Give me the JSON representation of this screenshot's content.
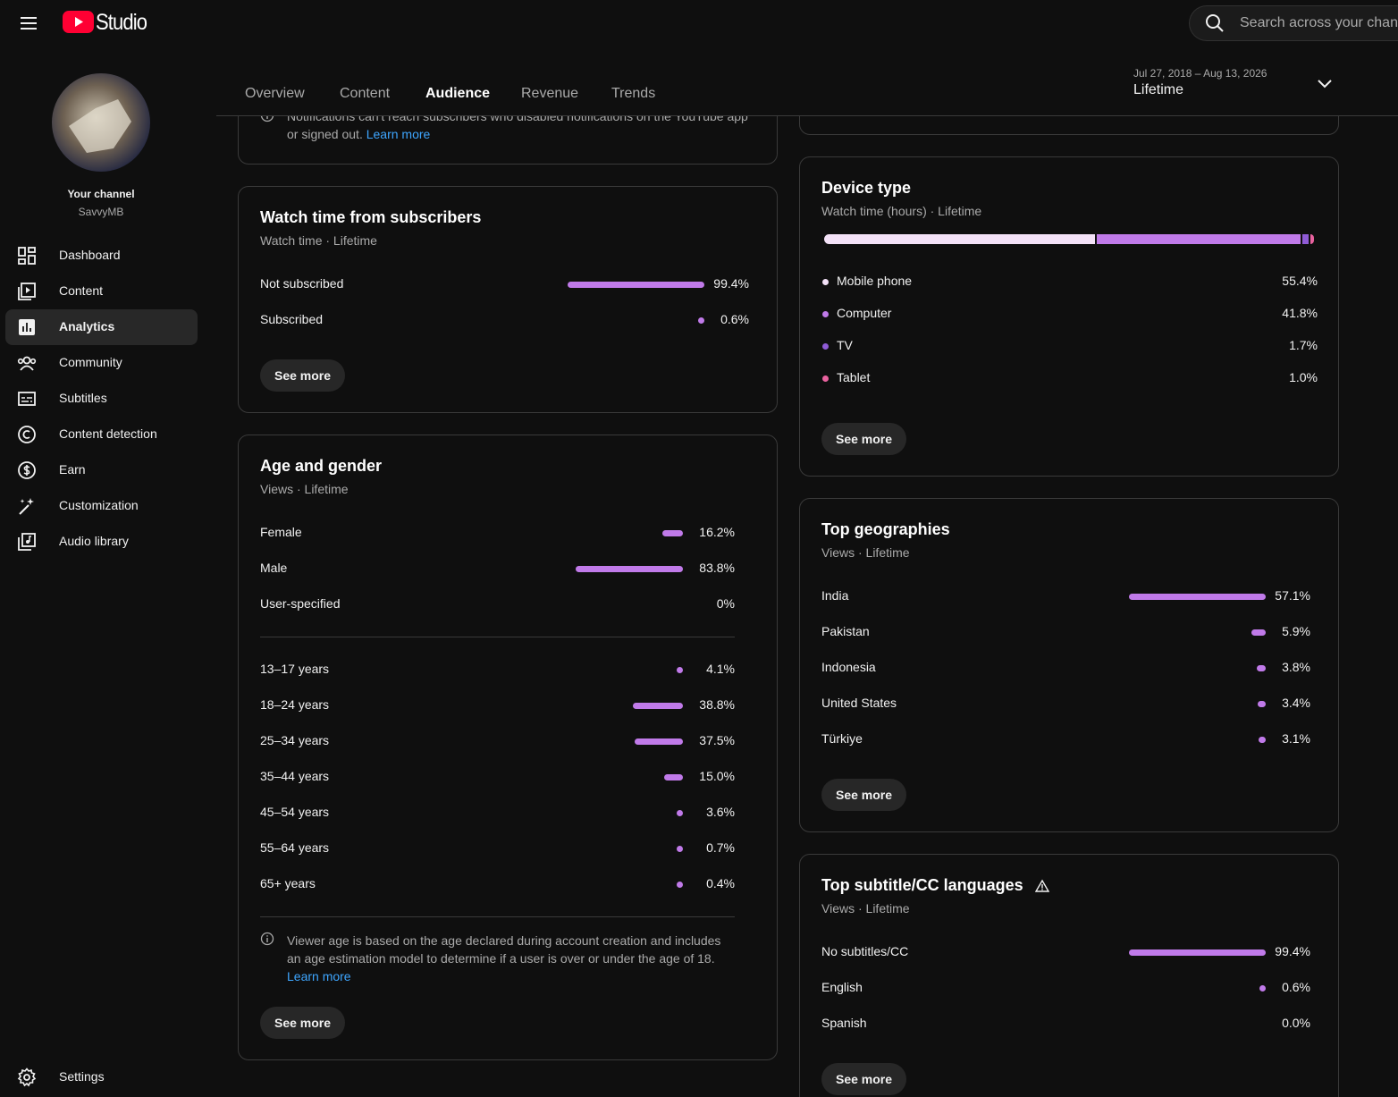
{
  "header": {
    "brand": "Studio",
    "search_placeholder": "Search across your channel"
  },
  "sidebar": {
    "channel_label": "Your channel",
    "channel_name": "SavvyMB",
    "nav": [
      "Dashboard",
      "Content",
      "Analytics",
      "Community",
      "Subtitles",
      "Content detection",
      "Earn",
      "Customization",
      "Audio library"
    ],
    "active_nav": 2,
    "settings": "Settings"
  },
  "tabs": {
    "items": [
      "Overview",
      "Content",
      "Audience",
      "Revenue",
      "Trends"
    ],
    "active": 2
  },
  "date_range": {
    "range": "Jul 27, 2018 – Aug 13, 2026",
    "period": "Lifetime"
  },
  "notice_card": {
    "text": "Notifications can't reach subscribers who disabled notifications on the YouTube app or signed out.",
    "link": "Learn more"
  },
  "cards": [
    {
      "title": "Watch time from subscribers",
      "subtitle": "Watch time · Lifetime",
      "color": "#c07ae9",
      "groups": [
        {
          "categories": [
            "Not subscribed",
            "Subscribed"
          ],
          "values": [
            99.4,
            0.6
          ],
          "value_labels": [
            "99.4%",
            "0.6%"
          ]
        }
      ],
      "button": "See more"
    },
    {
      "title": "Age and gender",
      "subtitle": "Views · Lifetime",
      "color": "#c07ae9",
      "groups": [
        {
          "categories": [
            "Female",
            "Male",
            "User-specified"
          ],
          "values": [
            16.2,
            83.8,
            0
          ],
          "value_labels": [
            "16.2%",
            "83.8%",
            "0%"
          ]
        },
        {
          "categories": [
            "13–17 years",
            "18–24 years",
            "25–34 years",
            "35–44 years",
            "45–54 years",
            "55–64 years",
            "65+ years"
          ],
          "values": [
            4.1,
            38.8,
            37.5,
            15.0,
            3.6,
            0.7,
            0.4
          ],
          "value_labels": [
            "4.1%",
            "38.8%",
            "37.5%",
            "15.0%",
            "3.6%",
            "0.7%",
            "0.4%"
          ]
        }
      ],
      "note": "Viewer age is based on the age declared during account creation and includes an age estimation model to determine if a user is over or under the age of 18.",
      "note_link": "Learn more",
      "button": "See more"
    },
    {
      "title": "Device type",
      "subtitle": "Watch time (hours) · Lifetime",
      "stacked": true,
      "colors": [
        "#f3e1f7",
        "#c07ae9",
        "#8f5bd6",
        "#e9629f"
      ],
      "groups": [
        {
          "categories": [
            "Mobile phone",
            "Computer",
            "TV",
            "Tablet"
          ],
          "values": [
            55.4,
            41.8,
            1.7,
            1.0
          ],
          "value_labels": [
            "55.4%",
            "41.8%",
            "1.7%",
            "1.0%"
          ]
        }
      ],
      "button": "See more"
    },
    {
      "title": "Top geographies",
      "subtitle": "Views · Lifetime",
      "color": "#c07ae9",
      "groups": [
        {
          "categories": [
            "India",
            "Pakistan",
            "Indonesia",
            "United States",
            "Türkiye"
          ],
          "values": [
            57.1,
            5.9,
            3.8,
            3.4,
            3.1
          ],
          "value_labels": [
            "57.1%",
            "5.9%",
            "3.8%",
            "3.4%",
            "3.1%"
          ]
        }
      ],
      "button": "See more"
    },
    {
      "title": "Top subtitle/CC languages",
      "subtitle": "Views · Lifetime",
      "color": "#c07ae9",
      "groups": [
        {
          "categories": [
            "No subtitles/CC",
            "English",
            "Spanish"
          ],
          "values": [
            99.4,
            0.6,
            0
          ],
          "value_labels": [
            "99.4%",
            "0.6%",
            "0.0%"
          ]
        }
      ],
      "button": "See more"
    }
  ]
}
